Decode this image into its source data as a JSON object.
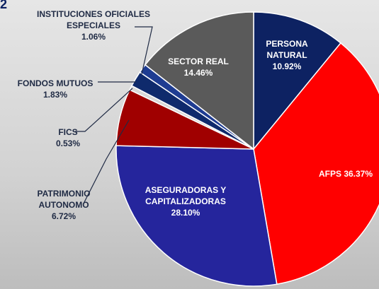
{
  "chart_data": {
    "type": "pie",
    "title": "2",
    "categories": [
      "PERSONA NATURAL",
      "AFPS",
      "ASEGURADORAS Y CAPITALIZADORAS",
      "PATRIMONIO AUTONOMO",
      "FICS",
      "FONDOS MUTUOS",
      "INSTITUCIONES OFICIALES ESPECIALES",
      "SECTOR REAL"
    ],
    "values": [
      10.92,
      36.37,
      28.1,
      6.72,
      0.53,
      1.83,
      1.06,
      14.46
    ],
    "value_labels": [
      "10.92%",
      "36.37%",
      "28.10%",
      "6.72%",
      "0.53%",
      "1.83%",
      "1.06%",
      "14.46%"
    ],
    "colors": [
      "#0d2262",
      "#ff0000",
      "#25259c",
      "#a00000",
      "#d9d9d9",
      "#0f2a6c",
      "#1e3c92",
      "#5a5a5a"
    ]
  }
}
